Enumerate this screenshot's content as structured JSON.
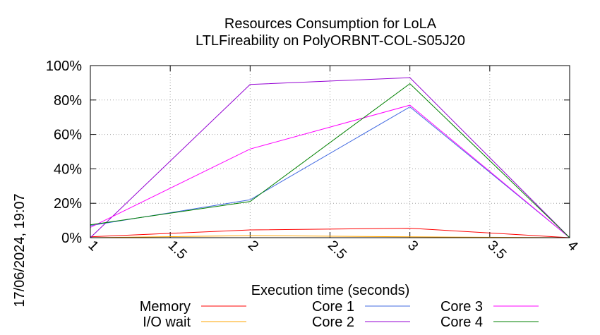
{
  "chart_data": {
    "type": "line",
    "title": "Resources Consumption for LoLA",
    "subtitle": "LTLFireability on PolyORBNT-COL-S05J20",
    "xlabel": "Execution time (seconds)",
    "ylabel": "",
    "xlim": [
      1,
      4
    ],
    "ylim": [
      0,
      100
    ],
    "x_ticks": [
      "1",
      "1.5",
      "2",
      "2.5",
      "3",
      "3.5",
      "4"
    ],
    "y_ticks": [
      "0%",
      "20%",
      "40%",
      "60%",
      "80%",
      "100%"
    ],
    "grid": true,
    "legend_position": "bottom",
    "x": [
      1,
      2,
      3,
      4
    ],
    "series": [
      {
        "name": "Memory",
        "color": "#ff0000",
        "values": [
          0.5,
          4.5,
          5.5,
          0
        ]
      },
      {
        "name": "I/O wait",
        "color": "#ffa500",
        "values": [
          0,
          1.2,
          0.5,
          0
        ]
      },
      {
        "name": "Core 1",
        "color": "#4169e1",
        "values": [
          7,
          22,
          76,
          0
        ]
      },
      {
        "name": "Core 2",
        "color": "#9400d3",
        "values": [
          0,
          89,
          93,
          0
        ]
      },
      {
        "name": "Core 3",
        "color": "#ff00ff",
        "values": [
          6,
          51.5,
          77,
          0
        ]
      },
      {
        "name": "Core 4",
        "color": "#008000",
        "values": [
          7.5,
          21,
          89.5,
          0
        ]
      }
    ]
  },
  "timestamp": "17/06/2024, 19:07"
}
